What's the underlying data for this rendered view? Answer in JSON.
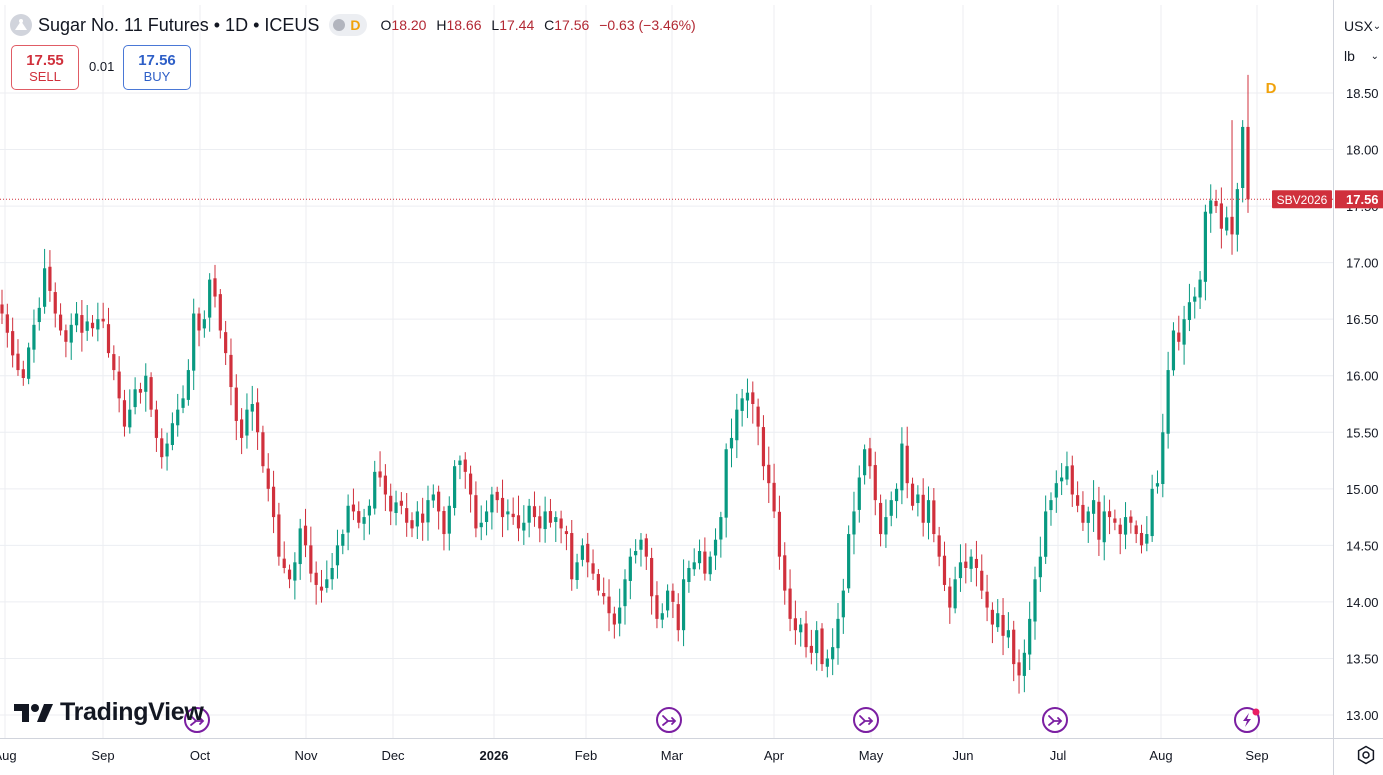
{
  "header": {
    "title": "Sugar No. 11 Futures • 1D • ICEUS",
    "interval_badge": "D",
    "ohlc": [
      {
        "key": "O",
        "value": "18.20"
      },
      {
        "key": "H",
        "value": "18.66"
      },
      {
        "key": "L",
        "value": "17.44"
      },
      {
        "key": "C",
        "value": "17.56"
      }
    ],
    "change": "−0.63 (−3.46%)",
    "icon": "sugar-symbol-icon"
  },
  "trade": {
    "sell_price": "17.55",
    "sell_label": "SELL",
    "spread": "0.01",
    "buy_price": "17.56",
    "buy_label": "BUY"
  },
  "scale_controls": {
    "currency": "USX",
    "unit": "lb"
  },
  "branding": {
    "name": "TradingView"
  },
  "colors": {
    "up": "#089981",
    "down": "#d0303c",
    "grid": "#eceef2",
    "price_line": "#d0303c"
  },
  "chart_data": {
    "type": "candlestick",
    "ylim": [
      12.85,
      18.9
    ],
    "y_ticks": [
      "13.00",
      "13.50",
      "14.00",
      "14.50",
      "15.00",
      "15.50",
      "16.00",
      "16.50",
      "17.00",
      "17.50",
      "18.00",
      "18.50"
    ],
    "x_labels": [
      "Aug",
      "Sep",
      "Oct",
      "Nov",
      "Dec",
      "2026",
      "Feb",
      "Mar",
      "Apr",
      "May",
      "Jun",
      "Jul",
      "Aug",
      "Sep"
    ],
    "last_price": {
      "symbol": "SBV2026",
      "value": "17.56"
    },
    "interval_marker": "D",
    "event_markers": [
      {
        "type": "split",
        "near": "Oct"
      },
      {
        "type": "split",
        "near": "Mar"
      },
      {
        "type": "split",
        "near": "May"
      },
      {
        "type": "split",
        "near": "Jul"
      },
      {
        "type": "flash",
        "near": "Sep"
      }
    ],
    "closes": [
      16.55,
      16.38,
      16.18,
      16.05,
      15.98,
      16.25,
      16.45,
      16.6,
      16.95,
      16.75,
      16.55,
      16.4,
      16.3,
      16.45,
      16.55,
      16.38,
      16.48,
      16.42,
      16.5,
      16.48,
      16.2,
      16.05,
      15.8,
      15.55,
      15.7,
      15.88,
      15.85,
      16.0,
      15.7,
      15.45,
      15.28,
      15.4,
      15.58,
      15.7,
      15.8,
      16.05,
      16.55,
      16.4,
      16.5,
      16.85,
      16.7,
      16.4,
      16.2,
      15.9,
      15.6,
      15.45,
      15.7,
      15.75,
      15.5,
      15.2,
      15.0,
      14.75,
      14.4,
      14.3,
      14.2,
      14.35,
      14.65,
      14.5,
      14.25,
      14.15,
      14.1,
      14.2,
      14.3,
      14.5,
      14.6,
      14.85,
      14.8,
      14.7,
      14.75,
      14.85,
      15.15,
      15.1,
      14.95,
      14.8,
      14.88,
      14.85,
      14.7,
      14.65,
      14.8,
      14.7,
      14.9,
      14.95,
      14.8,
      14.6,
      14.85,
      15.2,
      15.25,
      15.15,
      14.95,
      14.65,
      14.7,
      14.8,
      14.95,
      14.9,
      14.75,
      14.8,
      14.75,
      14.65,
      14.7,
      14.85,
      14.75,
      14.65,
      14.8,
      14.7,
      14.75,
      14.65,
      14.6,
      14.2,
      14.35,
      14.5,
      14.35,
      14.25,
      14.1,
      14.05,
      13.9,
      13.8,
      13.95,
      14.2,
      14.4,
      14.45,
      14.55,
      14.4,
      14.05,
      13.85,
      13.9,
      14.1,
      14.0,
      13.75,
      14.2,
      14.3,
      14.35,
      14.45,
      14.25,
      14.4,
      14.55,
      14.75,
      15.35,
      15.45,
      15.7,
      15.8,
      15.85,
      15.75,
      15.55,
      15.2,
      15.05,
      14.8,
      14.4,
      14.1,
      13.85,
      13.75,
      13.8,
      13.6,
      13.55,
      13.75,
      13.45,
      13.5,
      13.6,
      13.85,
      14.1,
      14.6,
      14.8,
      15.1,
      15.35,
      15.2,
      14.9,
      14.6,
      14.75,
      14.9,
      15.0,
      15.4,
      15.05,
      14.85,
      14.95,
      14.7,
      14.9,
      14.6,
      14.4,
      14.15,
      13.95,
      14.2,
      14.35,
      14.3,
      14.4,
      14.3,
      14.1,
      13.95,
      13.8,
      13.9,
      13.7,
      13.75,
      13.45,
      13.35,
      13.55,
      13.85,
      14.2,
      14.4,
      14.8,
      14.9,
      15.05,
      15.1,
      15.2,
      14.95,
      14.85,
      14.7,
      14.8,
      14.9,
      14.55,
      14.8,
      14.75,
      14.7,
      14.6,
      14.75,
      14.7,
      14.6,
      14.5,
      14.6,
      15.0,
      15.05,
      15.5,
      16.05,
      16.4,
      16.3,
      16.5,
      16.65,
      16.7,
      16.85,
      17.45,
      17.55,
      17.5,
      17.3,
      17.4,
      17.25,
      17.65,
      18.2,
      17.56
    ],
    "series": [
      {
        "name": "SBV2026",
        "values": "closes"
      }
    ]
  }
}
